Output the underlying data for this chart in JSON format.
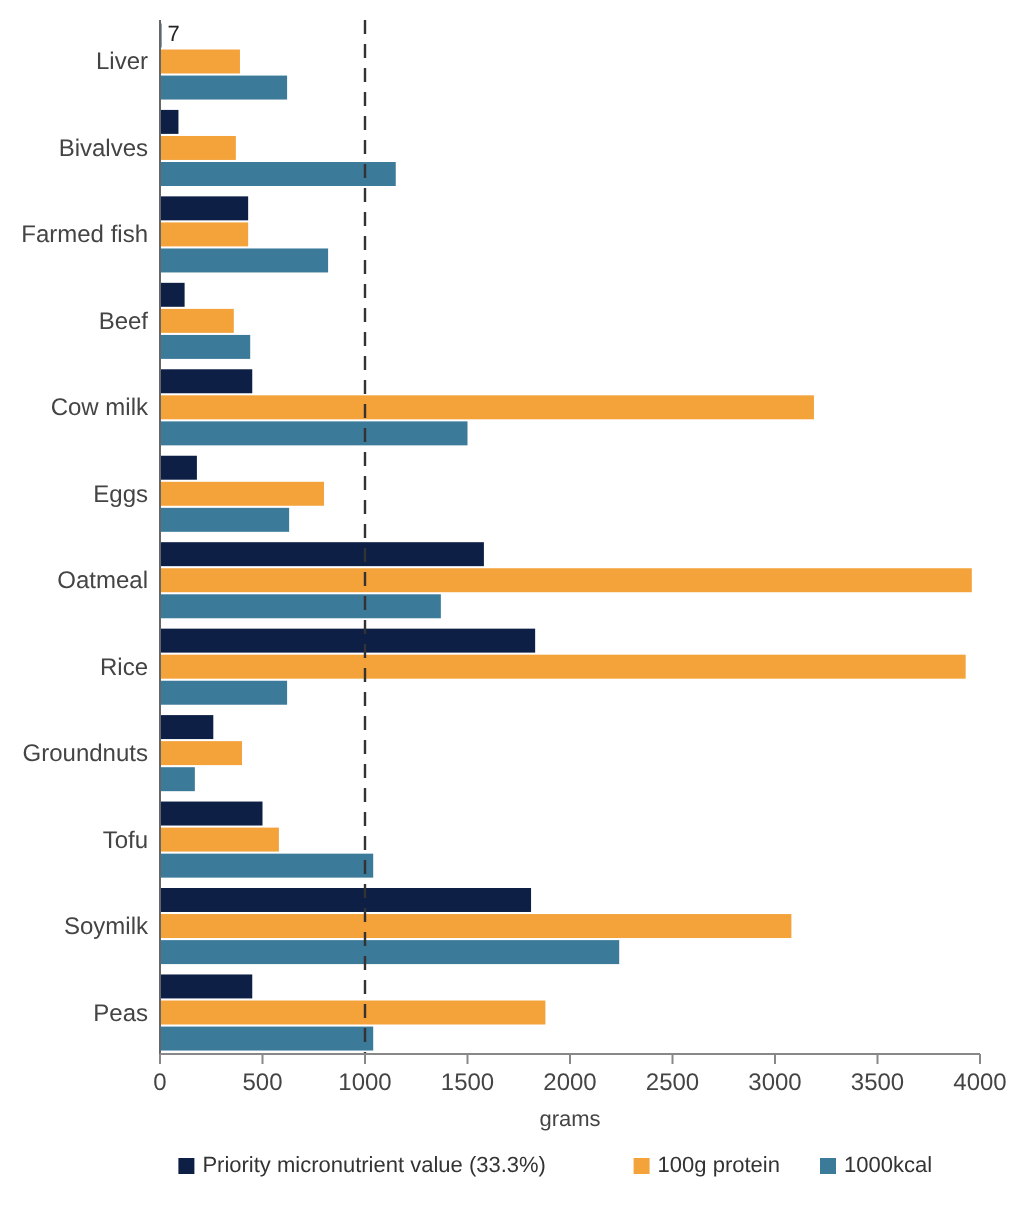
{
  "chart_data": {
    "type": "bar",
    "orientation": "horizontal",
    "xlabel": "grams",
    "categories": [
      "Liver",
      "Bivalves",
      "Farmed fish",
      "Beef",
      "Cow milk",
      "Eggs",
      "Oatmeal",
      "Rice",
      "Groundnuts",
      "Tofu",
      "Soymilk",
      "Peas"
    ],
    "series": [
      {
        "name": "Priority micronutrient value (33.3%)",
        "color": "#0d1f45",
        "values": [
          7,
          90,
          430,
          120,
          450,
          180,
          1580,
          1830,
          260,
          500,
          1810,
          450
        ],
        "value_labels": [
          "7",
          null,
          null,
          null,
          null,
          null,
          null,
          null,
          null,
          null,
          null,
          null
        ]
      },
      {
        "name": "100g protein",
        "color": "#f4a23a",
        "values": [
          390,
          370,
          430,
          360,
          3190,
          800,
          3960,
          3930,
          400,
          580,
          3080,
          1880
        ]
      },
      {
        "name": "1000kcal",
        "color": "#3c7a9a",
        "values": [
          620,
          1150,
          820,
          440,
          1500,
          630,
          1370,
          620,
          170,
          1040,
          2240,
          1040
        ]
      }
    ],
    "xlim": [
      0,
      4000
    ],
    "xticks": [
      0,
      500,
      1000,
      1500,
      2000,
      2500,
      3000,
      3500,
      4000
    ],
    "ref_lines": [
      {
        "axis": "x",
        "value": 1000,
        "color": "#333333",
        "line_style": "dashed"
      }
    ],
    "legend": "bottom",
    "grid": false
  }
}
